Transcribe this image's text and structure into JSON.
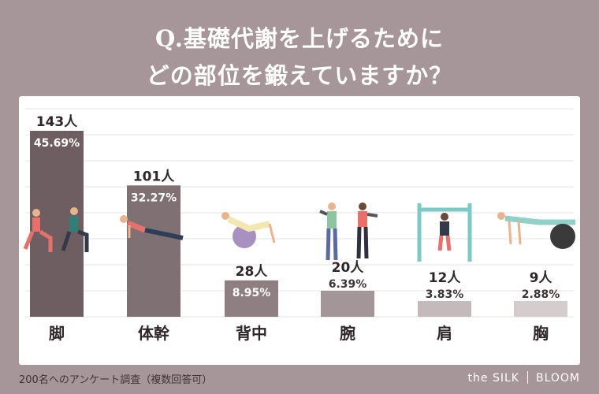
{
  "title_line1": "Q.基礎代謝を上げるために",
  "title_line2": "どの部位を鍛えていますか？",
  "footer_note": "200名へのアンケート調査（複数回答可）",
  "brand": {
    "left": "the SILK",
    "right": "BLOOM"
  },
  "chart_data": {
    "type": "bar",
    "title": "Q.基礎代謝を上げるために どの部位を鍛えていますか？",
    "categories": [
      "脚",
      "体幹",
      "背中",
      "腕",
      "肩",
      "胸"
    ],
    "values": [
      143,
      101,
      28,
      20,
      12,
      9
    ],
    "count_labels": [
      "143人",
      "101人",
      "28人",
      "20人",
      "12人",
      "9人"
    ],
    "percent_labels": [
      "45.69%",
      "32.27%",
      "8.95%",
      "6.39%",
      "3.83%",
      "2.88%"
    ],
    "bar_colors": [
      "#6e5e61",
      "#7f7073",
      "#8f7f83",
      "#a39598",
      "#c4b9bb",
      "#d4cccd"
    ],
    "ylim": [
      0,
      143
    ],
    "grid": true,
    "xlabel": "",
    "ylabel": ""
  }
}
